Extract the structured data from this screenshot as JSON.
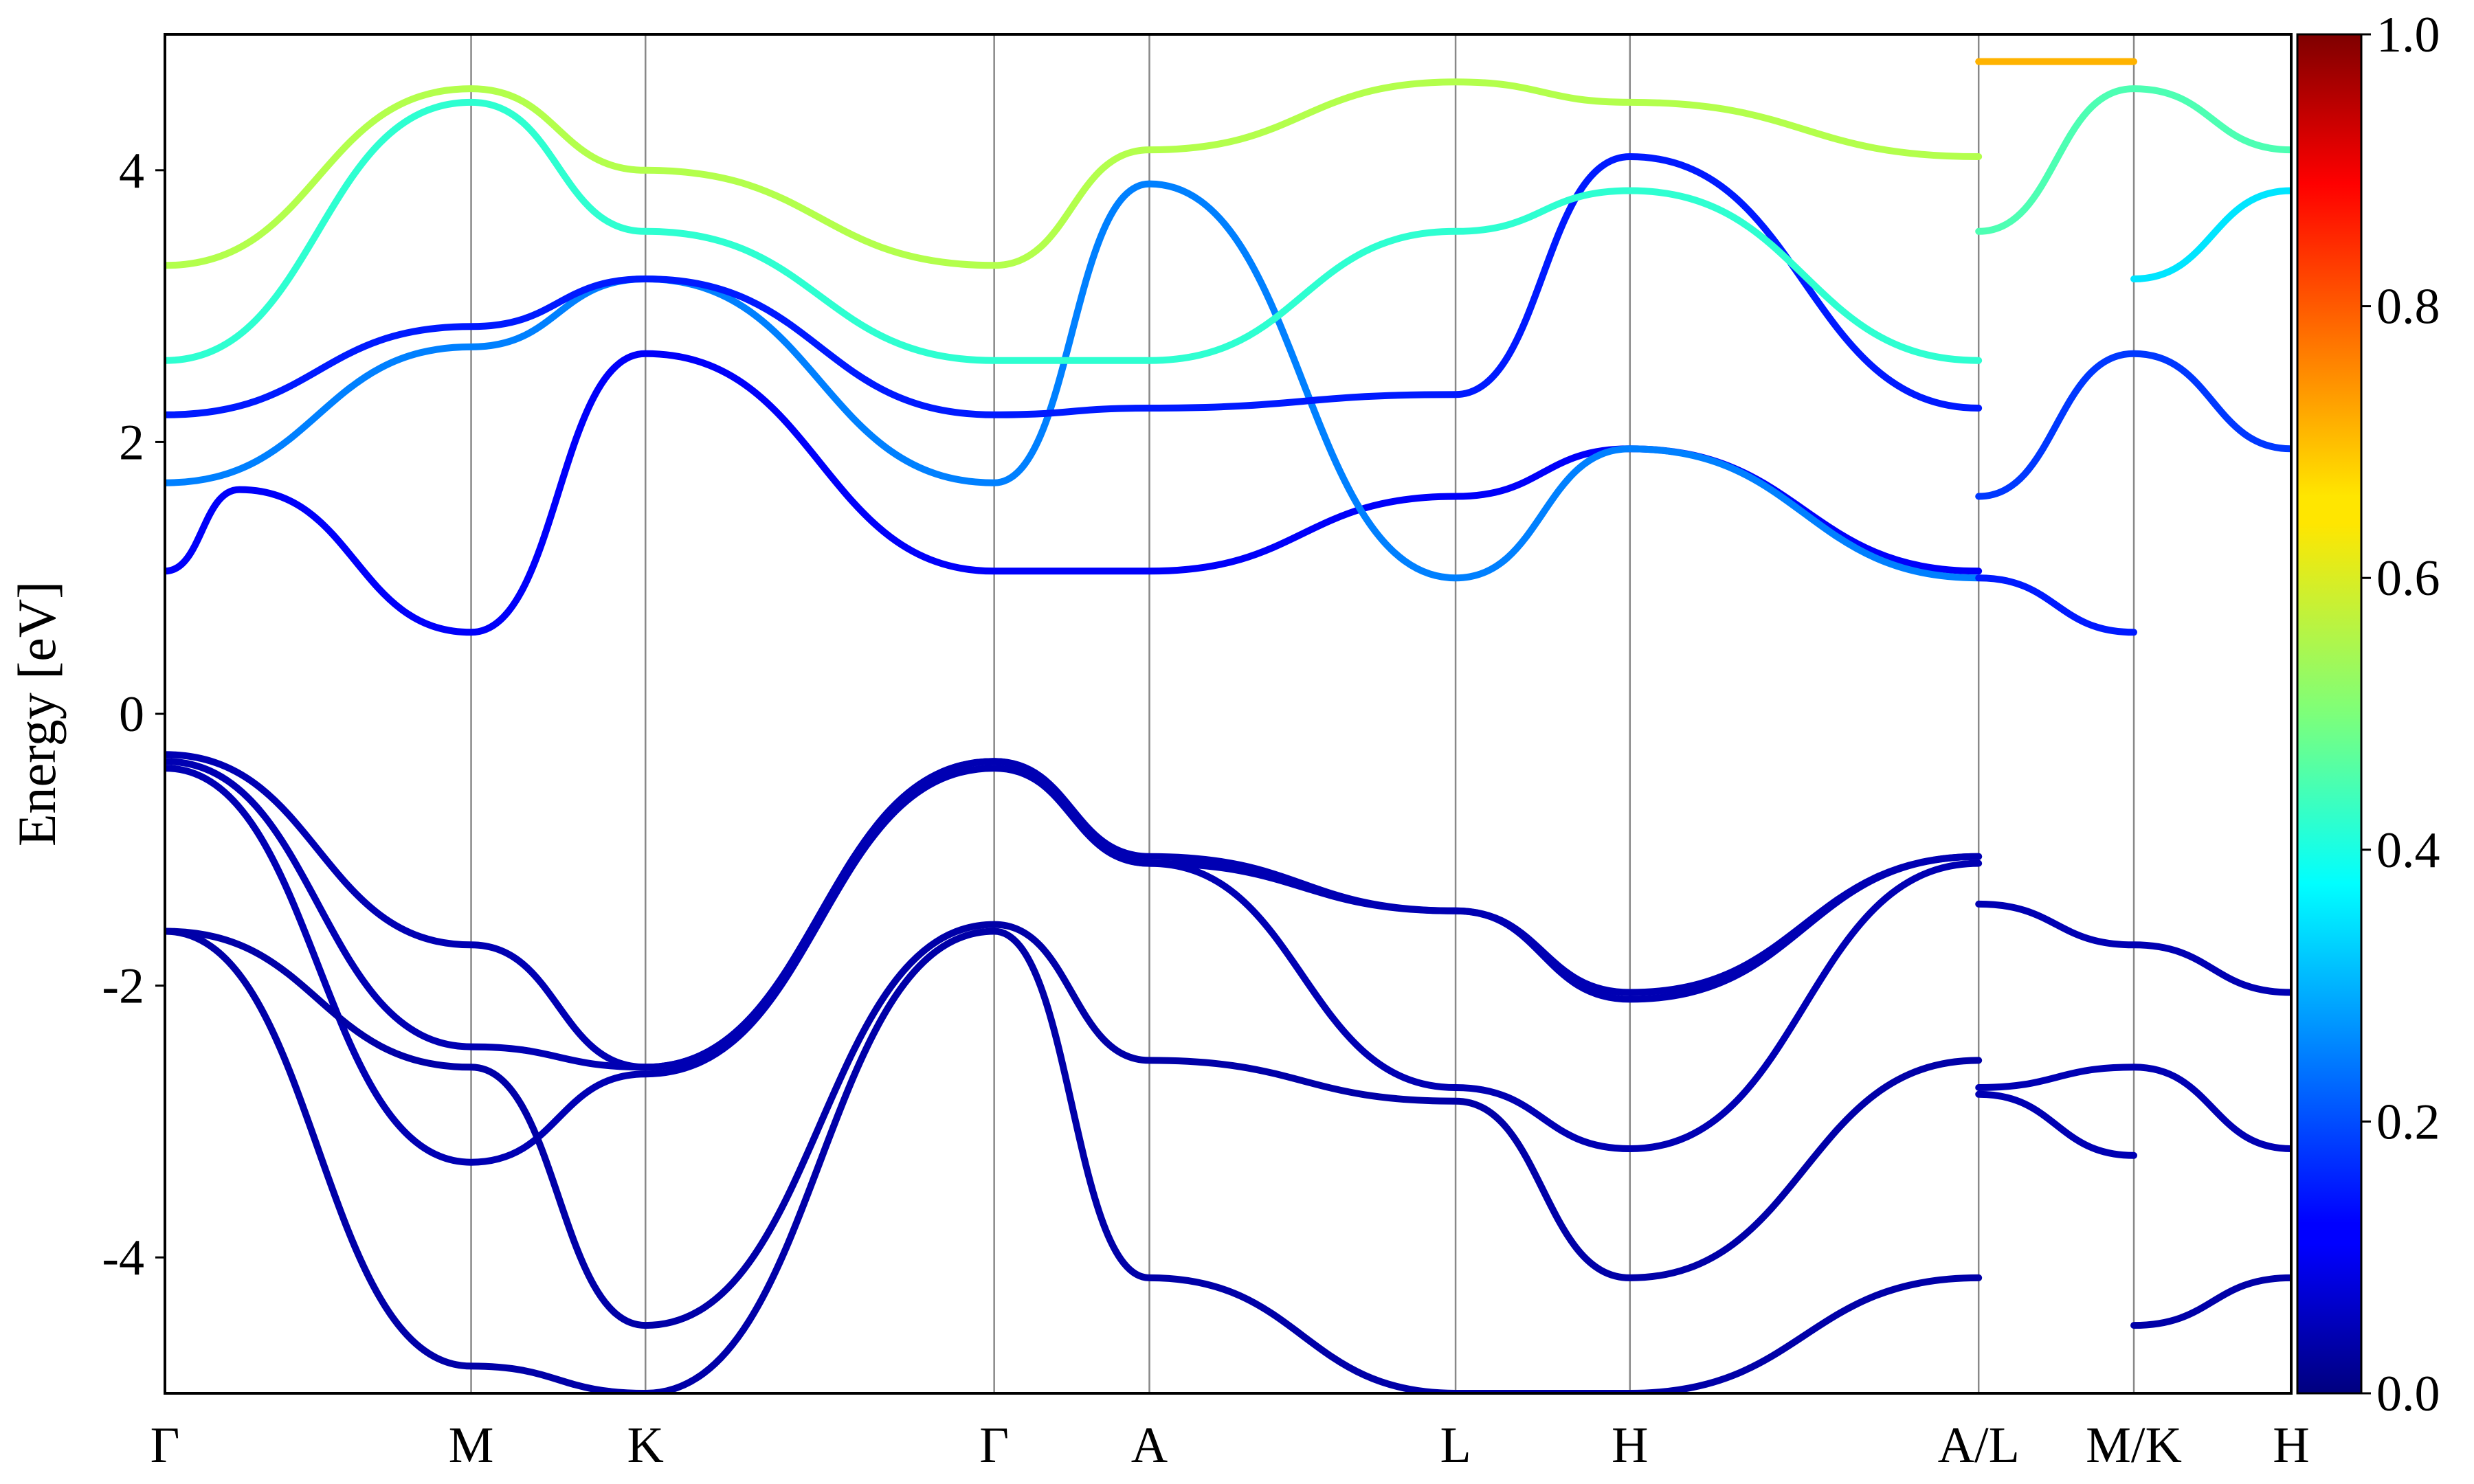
{
  "chart_data": {
    "type": "line",
    "ylabel": "Energy [eV]",
    "ylim": [
      -5,
      5
    ],
    "yticks": [
      -4,
      -2,
      0,
      2,
      4
    ],
    "ytick_labels": [
      "-4",
      "-2",
      "0",
      "2",
      "4"
    ],
    "kpoints": [
      {
        "label": "Γ",
        "x": 0.0
      },
      {
        "label": "M",
        "x": 0.144
      },
      {
        "label": "K",
        "x": 0.226
      },
      {
        "label": "Γ",
        "x": 0.39
      },
      {
        "label": "A",
        "x": 0.463
      },
      {
        "label": "L",
        "x": 0.607
      },
      {
        "label": "H",
        "x": 0.689
      },
      {
        "label": "A/L",
        "x": 0.853
      },
      {
        "label": "M/K",
        "x": 0.926
      },
      {
        "label": "H",
        "x": 1.0
      }
    ],
    "colorbar": {
      "colormap": "jet",
      "range": [
        0.0,
        1.0
      ],
      "ticks": [
        0.0,
        0.2,
        0.4,
        0.6,
        0.8,
        1.0
      ],
      "tick_labels": [
        "0.0",
        "0.2",
        "0.4",
        "0.6",
        "0.8",
        "1.0"
      ]
    },
    "series": [
      {
        "values": [
          [
            0.0,
            -0.3
          ],
          [
            0.144,
            -1.7
          ],
          [
            0.226,
            -2.6
          ],
          [
            0.39,
            -0.35
          ],
          [
            0.463,
            -1.1
          ],
          [
            0.607,
            -1.45
          ],
          [
            0.689,
            -2.05
          ],
          [
            0.853,
            -1.05
          ]
        ],
        "weight": 0.05
      },
      {
        "values": [
          [
            0.0,
            -0.35
          ],
          [
            0.144,
            -2.45
          ],
          [
            0.226,
            -2.6
          ],
          [
            0.39,
            -0.35
          ],
          [
            0.463,
            -1.05
          ],
          [
            0.607,
            -1.45
          ],
          [
            0.689,
            -2.1
          ],
          [
            0.853,
            -1.05
          ]
        ],
        "weight": 0.05
      },
      {
        "values": [
          [
            0.0,
            -0.4
          ],
          [
            0.144,
            -3.3
          ],
          [
            0.226,
            -2.65
          ],
          [
            0.39,
            -0.4
          ],
          [
            0.463,
            -1.1
          ],
          [
            0.607,
            -2.75
          ],
          [
            0.689,
            -3.2
          ],
          [
            0.853,
            -1.1
          ]
        ],
        "weight": 0.05
      },
      {
        "values": [
          [
            0.0,
            -1.6
          ],
          [
            0.144,
            -2.6
          ],
          [
            0.226,
            -4.5
          ],
          [
            0.39,
            -1.55
          ],
          [
            0.463,
            -2.55
          ],
          [
            0.607,
            -2.85
          ],
          [
            0.689,
            -4.15
          ],
          [
            0.853,
            -2.55
          ]
        ],
        "weight": 0.04
      },
      {
        "values": [
          [
            0.0,
            -1.6
          ],
          [
            0.144,
            -4.8
          ],
          [
            0.226,
            -5.0
          ],
          [
            0.39,
            -1.6
          ],
          [
            0.463,
            -4.15
          ],
          [
            0.607,
            -5.0
          ],
          [
            0.689,
            -5.0
          ],
          [
            0.853,
            -4.15
          ]
        ],
        "weight": 0.04
      },
      {
        "values": [
          [
            0.853,
            -1.4
          ],
          [
            0.926,
            -1.7
          ],
          [
            1.0,
            -2.05
          ]
        ],
        "weight": 0.05
      },
      {
        "values": [
          [
            0.853,
            -2.75
          ],
          [
            0.926,
            -2.6
          ],
          [
            1.0,
            -3.2
          ]
        ],
        "weight": 0.05
      },
      {
        "values": [
          [
            0.853,
            -2.8
          ],
          [
            0.926,
            -3.25
          ]
        ],
        "weight": 0.05
      },
      {
        "values": [
          [
            0.926,
            -4.5
          ],
          [
            1.0,
            -4.15
          ]
        ],
        "weight": 0.04
      },
      {
        "values": [
          [
            0.0,
            1.05
          ],
          [
            0.035,
            1.65
          ],
          [
            0.144,
            0.6
          ],
          [
            0.226,
            2.65
          ],
          [
            0.39,
            1.05
          ],
          [
            0.463,
            1.05
          ],
          [
            0.607,
            1.6
          ],
          [
            0.689,
            1.95
          ],
          [
            0.853,
            1.05
          ]
        ],
        "weight": 0.12
      },
      {
        "values": [
          [
            0.0,
            1.7
          ],
          [
            0.144,
            2.7
          ],
          [
            0.226,
            3.2
          ],
          [
            0.39,
            1.7
          ],
          [
            0.463,
            3.9
          ],
          [
            0.607,
            1.0
          ],
          [
            0.689,
            1.95
          ],
          [
            0.853,
            1.0
          ]
        ],
        "weight": 0.25
      },
      {
        "values": [
          [
            0.0,
            2.2
          ],
          [
            0.144,
            2.85
          ],
          [
            0.226,
            3.2
          ],
          [
            0.39,
            2.2
          ],
          [
            0.463,
            2.25
          ],
          [
            0.607,
            2.35
          ],
          [
            0.689,
            4.1
          ],
          [
            0.853,
            2.25
          ]
        ],
        "weight": 0.15
      },
      {
        "values": [
          [
            0.0,
            2.6
          ],
          [
            0.144,
            4.5
          ],
          [
            0.226,
            3.55
          ],
          [
            0.39,
            2.6
          ],
          [
            0.463,
            2.6
          ],
          [
            0.607,
            3.55
          ],
          [
            0.689,
            3.85
          ],
          [
            0.853,
            2.6
          ]
        ],
        "weight": 0.42
      },
      {
        "values": [
          [
            0.0,
            3.3
          ],
          [
            0.144,
            4.6
          ],
          [
            0.226,
            4.0
          ],
          [
            0.39,
            3.3
          ],
          [
            0.463,
            4.15
          ],
          [
            0.607,
            4.65
          ],
          [
            0.689,
            4.5
          ],
          [
            0.853,
            4.1
          ]
        ],
        "weight": 0.55
      },
      {
        "values": [
          [
            0.853,
            1.0
          ],
          [
            0.926,
            0.6
          ]
        ],
        "weight": 0.15
      },
      {
        "values": [
          [
            0.853,
            1.6
          ],
          [
            0.926,
            2.65
          ],
          [
            1.0,
            1.95
          ]
        ],
        "weight": 0.18
      },
      {
        "values": [
          [
            0.853,
            3.55
          ],
          [
            0.926,
            4.6
          ],
          [
            1.0,
            4.15
          ]
        ],
        "weight": 0.45
      },
      {
        "values": [
          [
            0.926,
            3.2
          ],
          [
            1.0,
            3.85
          ]
        ],
        "weight": 0.35
      },
      {
        "values": [
          [
            0.853,
            4.8
          ],
          [
            0.926,
            4.8
          ]
        ],
        "weight": 0.7
      }
    ]
  }
}
